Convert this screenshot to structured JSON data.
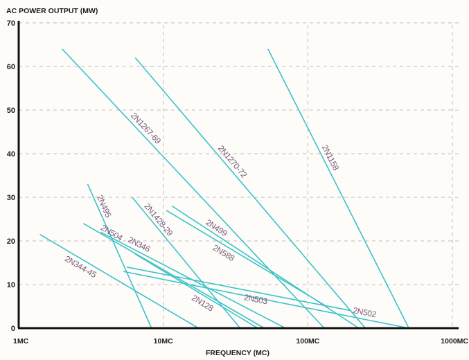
{
  "chart_data": {
    "type": "line",
    "ylabel": "AC POWER OUTPUT (MW)",
    "xlabel": "FREQUENCY (MC)",
    "x_scale": "log",
    "x_unit": "MC",
    "xlim": [
      1,
      1000
    ],
    "ylim": [
      0,
      70
    ],
    "x_ticks": [
      {
        "value": 1,
        "label": "1MC"
      },
      {
        "value": 10,
        "label": "10MC"
      },
      {
        "value": 100,
        "label": "100MC"
      },
      {
        "value": 1000,
        "label": "1000MC"
      }
    ],
    "y_ticks": [
      {
        "value": 0,
        "label": "0"
      },
      {
        "value": 10,
        "label": "10"
      },
      {
        "value": 20,
        "label": "20"
      },
      {
        "value": 30,
        "label": "30"
      },
      {
        "value": 40,
        "label": "40"
      },
      {
        "value": 50,
        "label": "50"
      },
      {
        "value": 60,
        "label": "60"
      },
      {
        "value": 70,
        "label": "70"
      }
    ],
    "grid": true,
    "colors": {
      "line": "#3cc3c9",
      "label": "#7a5a78",
      "grid": "#bdbdbd",
      "axis": "#111111"
    },
    "series": [
      {
        "name": "2N1267-69",
        "x": [
          2.0,
          130
        ],
        "y": [
          64,
          0
        ]
      },
      {
        "name": "2N1270-72",
        "x": [
          6.4,
          250
        ],
        "y": [
          62,
          0
        ]
      },
      {
        "name": "2N1158",
        "x": [
          53,
          500
        ],
        "y": [
          64,
          0
        ]
      },
      {
        "name": "2N495",
        "x": [
          3.0,
          8.3
        ],
        "y": [
          33,
          0
        ]
      },
      {
        "name": "2N1428-29",
        "x": [
          6.1,
          34
        ],
        "y": [
          30,
          0
        ]
      },
      {
        "name": "2N499",
        "x": [
          11.5,
          225
        ],
        "y": [
          28,
          0
        ]
      },
      {
        "name": "2N504",
        "x": [
          2.8,
          50
        ],
        "y": [
          24,
          0
        ]
      },
      {
        "name": "2N346",
        "x": [
          3.7,
          70
        ],
        "y": [
          22,
          0
        ]
      },
      {
        "name": "2N588",
        "x": [
          10.5,
          135
        ],
        "y": [
          27,
          5
        ]
      },
      {
        "name": "2N344-45",
        "x": [
          1.4,
          17.5
        ],
        "y": [
          21.5,
          0
        ]
      },
      {
        "name": "2N128",
        "x": [
          6.4,
          45
        ],
        "y": [
          17,
          0
        ]
      },
      {
        "name": "2N503",
        "x": [
          5.6,
          200
        ],
        "y": [
          14,
          4
        ]
      },
      {
        "name": "2N502",
        "x": [
          5.3,
          500
        ],
        "y": [
          13,
          0
        ]
      }
    ]
  }
}
